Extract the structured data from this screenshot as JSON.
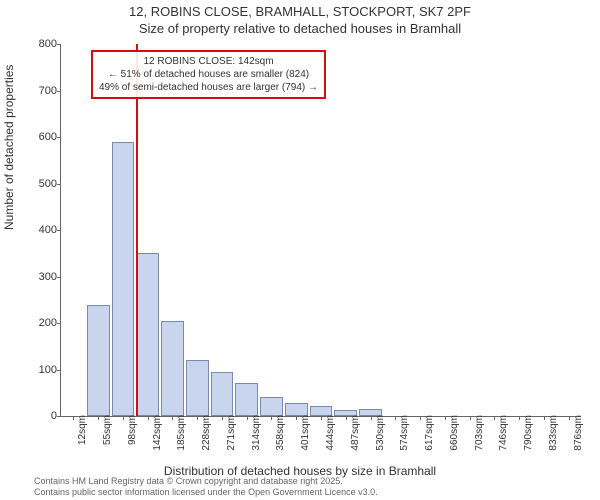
{
  "title_line1": "12, ROBINS CLOSE, BRAMHALL, STOCKPORT, SK7 2PF",
  "title_line2": "Size of property relative to detached houses in Bramhall",
  "y_axis_label": "Number of detached properties",
  "x_axis_label": "Distribution of detached houses by size in Bramhall",
  "chart": {
    "type": "histogram",
    "ylim": [
      0,
      800
    ],
    "ytick_step": 100,
    "y_ticks": [
      0,
      100,
      200,
      300,
      400,
      500,
      600,
      700,
      800
    ],
    "bar_fill": "#c9d5ec",
    "bar_border": "#7a8aac",
    "background_color": "#ffffff",
    "reference_line_color": "#d01010",
    "reference_value": 142,
    "x_labels": [
      "12sqm",
      "55sqm",
      "98sqm",
      "142sqm",
      "185sqm",
      "228sqm",
      "271sqm",
      "314sqm",
      "358sqm",
      "401sqm",
      "444sqm",
      "487sqm",
      "530sqm",
      "574sqm",
      "617sqm",
      "660sqm",
      "703sqm",
      "746sqm",
      "790sqm",
      "833sqm",
      "876sqm"
    ],
    "values": [
      0,
      238,
      590,
      350,
      205,
      120,
      95,
      70,
      40,
      28,
      22,
      14,
      16,
      0,
      0,
      0,
      0,
      0,
      0,
      0,
      0
    ]
  },
  "annotation": {
    "line1": "12 ROBINS CLOSE: 142sqm",
    "line2": "← 51% of detached houses are smaller (824)",
    "line3": "49% of semi-detached houses are larger (794) →"
  },
  "footer_line1": "Contains HM Land Registry data © Crown copyright and database right 2025.",
  "footer_line2": "Contains public sector information licensed under the Open Government Licence v3.0."
}
